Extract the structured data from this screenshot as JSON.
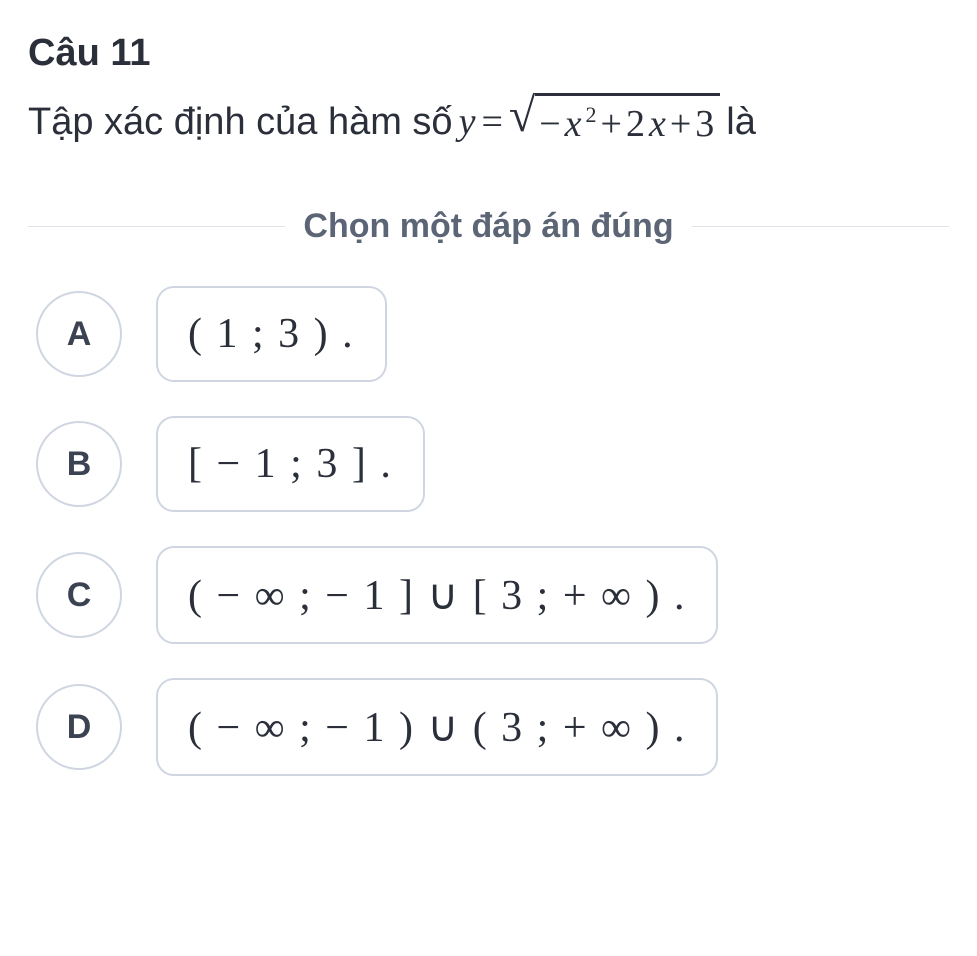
{
  "question": {
    "title": "Câu 11",
    "stem_prefix": "Tập xác định của hàm số",
    "var_y": "y",
    "equals": "=",
    "sqrt_sign": "√",
    "radicand_parts": {
      "neg": "−",
      "x": "x",
      "sq": "2",
      "plus1": "+",
      "two": "2",
      "x2": "x",
      "plus2": "+",
      "three": "3"
    },
    "stem_suffix": "là"
  },
  "instruction": "Chọn một đáp án đúng",
  "options": [
    {
      "key": "A",
      "value": "( 1 ; 3 ) ."
    },
    {
      "key": "B",
      "value": "[ − 1 ; 3 ] ."
    },
    {
      "key": "C",
      "value": "( − ∞ ; − 1 ] ∪ [ 3 ; + ∞ ) ."
    },
    {
      "key": "D",
      "value": "( − ∞ ; − 1 ) ∪ ( 3 ; + ∞ ) ."
    }
  ],
  "colors": {
    "text": "#2a2f3a",
    "muted": "#5c6575",
    "border": "#cfd6e1",
    "divider": "#dfe3ea",
    "background": "#ffffff"
  },
  "typography": {
    "title_fontsize": 38,
    "stem_fontsize": 38,
    "instruction_fontsize": 34,
    "option_key_fontsize": 34,
    "option_value_fontsize": 42
  },
  "layout": {
    "option_circle_diameter": 86,
    "option_box_radius": 18
  }
}
